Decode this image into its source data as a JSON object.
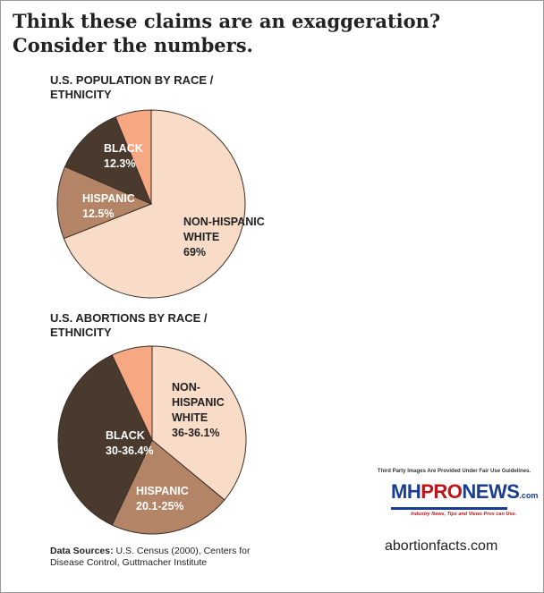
{
  "headline": "Think these claims are an exaggeration? Consider the numbers.",
  "chart_data": [
    {
      "type": "pie",
      "title": "U.S. POPULATION BY RACE / ETHNICITY",
      "slices": [
        {
          "label": "NON-HISPANIC WHITE",
          "value_label": "69%",
          "value": 69,
          "color": "#f9dcc8"
        },
        {
          "label": "HISPANIC",
          "value_label": "12.5%",
          "value": 12.5,
          "color": "#b48466"
        },
        {
          "label": "BLACK",
          "value_label": "12.3%",
          "value": 12.3,
          "color": "#4a3a2e"
        },
        {
          "label": "",
          "value_label": "",
          "value": 6.2,
          "color": "#f5a882"
        }
      ]
    },
    {
      "type": "pie",
      "title": "U.S. ABORTIONS BY RACE / ETHNICITY",
      "slices": [
        {
          "label": "NON-HISPANIC WHITE",
          "value_label": "36-36.1%",
          "value": 36,
          "color": "#f9dcc8"
        },
        {
          "label": "HISPANIC",
          "value_label": "20.1-25%",
          "value": 21,
          "color": "#b48466"
        },
        {
          "label": "BLACK",
          "value_label": "30-36.4%",
          "value": 36,
          "color": "#4a3a2e"
        },
        {
          "label": "",
          "value_label": "",
          "value": 7,
          "color": "#f5a882"
        }
      ]
    }
  ],
  "sources": {
    "prefix": "Data Sources:",
    "text": "U.S. Census (2000), Centers for Disease Control, Guttmacher Institute"
  },
  "fair_use": "Third Party Images Are Provided Under Fair Use Guidelines.",
  "logo": {
    "mh": "MH",
    "pro": "PRO",
    "news": "NEWS",
    "com": ".com",
    "tagline": "Industry News, Tips and Views Pros can Use."
  },
  "credit": "abortionfacts.com",
  "colors": {
    "label_dark": "#222222",
    "label_light": "#ffffff",
    "slice_edge": "#3a2e26"
  }
}
